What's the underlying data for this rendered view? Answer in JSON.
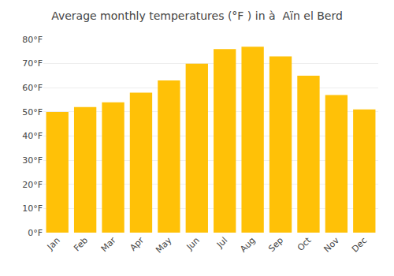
{
  "chart_data": {
    "type": "bar",
    "title": "Average monthly temperatures (°F ) in à  Aïn el Berd",
    "categories": [
      "Jan",
      "Feb",
      "Mar",
      "Apr",
      "May",
      "Jun",
      "Jul",
      "Aug",
      "Sep",
      "Oct",
      "Nov",
      "Dec"
    ],
    "values": [
      50,
      52,
      54,
      58,
      63,
      70,
      76,
      77,
      73,
      65,
      57,
      51
    ],
    "color": "#FFC107",
    "ylim": [
      0,
      80
    ],
    "yticks": [
      {
        "value": 0,
        "label": "0°F"
      },
      {
        "value": 10,
        "label": "10°F"
      },
      {
        "value": 20,
        "label": "20°F"
      },
      {
        "value": 30,
        "label": "30°F"
      },
      {
        "value": 40,
        "label": "40°F"
      },
      {
        "value": 50,
        "label": "50°F"
      },
      {
        "value": 60,
        "label": "60°F"
      },
      {
        "value": 70,
        "label": "70°F"
      },
      {
        "value": 80,
        "label": "80°F"
      }
    ],
    "grid": true
  }
}
